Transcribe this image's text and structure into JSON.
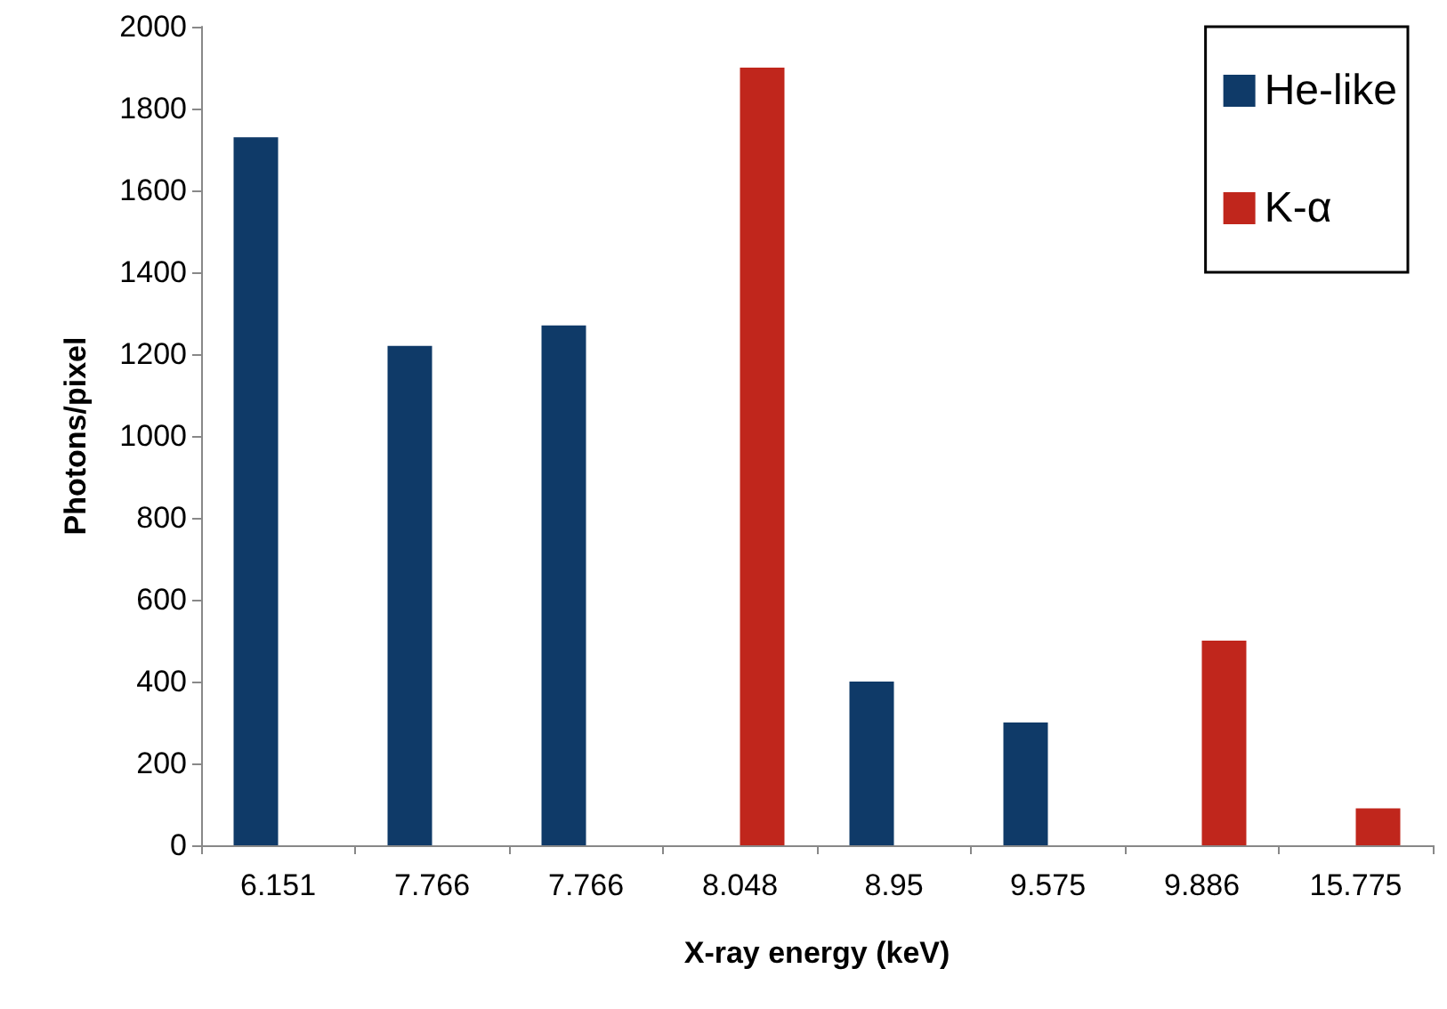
{
  "chart_data": {
    "type": "bar",
    "xlabel": "X-ray energy (keV)",
    "ylabel": "Photons/pixel",
    "categories": [
      "6.151",
      "7.766",
      "7.766",
      "8.048",
      "8.95",
      "9.575",
      "9.886",
      "15.775"
    ],
    "series": [
      {
        "name": "He-like",
        "color": "#0f3a68",
        "values": [
          1730,
          1220,
          1270,
          null,
          400,
          300,
          null,
          null
        ]
      },
      {
        "name": "K-α",
        "color": "#c0261c",
        "values": [
          null,
          null,
          null,
          1900,
          null,
          null,
          500,
          90
        ]
      }
    ],
    "ylim": [
      0,
      2000
    ],
    "yticks": [
      0,
      200,
      400,
      600,
      800,
      1000,
      1200,
      1400,
      1600,
      1800,
      2000
    ],
    "legend": "top right"
  }
}
